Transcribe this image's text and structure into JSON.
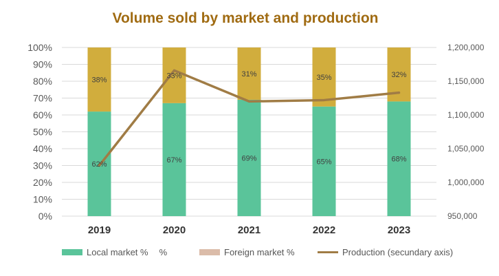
{
  "chart_data": {
    "type": "bar",
    "title": "Volume sold by market and production",
    "categories": [
      "2019",
      "2020",
      "2021",
      "2022",
      "2023"
    ],
    "y_axis": {
      "ticks": [
        "0%",
        "10%",
        "20%",
        "30%",
        "40%",
        "50%",
        "60%",
        "70%",
        "80%",
        "90%",
        "100%"
      ],
      "ylim": [
        0,
        100
      ]
    },
    "y2_axis": {
      "ticks": [
        "950,000",
        "1,000,000",
        "1,050,000",
        "1,100,000",
        "1,150,000",
        "1,200,000"
      ],
      "ylim": [
        950000,
        1200000
      ]
    },
    "series": [
      {
        "name": "Local market %",
        "kind": "stacked-bar",
        "color": "#5ac49a",
        "values": [
          62,
          67,
          69,
          65,
          68
        ],
        "labels": [
          "62%",
          "67%",
          "69%",
          "65%",
          "68%"
        ]
      },
      {
        "name": "Foreign market %",
        "kind": "stacked-bar",
        "color": "#d1ad3d",
        "values": [
          38,
          33,
          31,
          35,
          32
        ],
        "labels": [
          "38%",
          "33%",
          "31%",
          "35%",
          "32%"
        ]
      },
      {
        "name": "Production (secundary axis)",
        "kind": "line",
        "axis": "secondary",
        "color": "#a07c45",
        "values": [
          1025000,
          1166000,
          1120000,
          1122000,
          1133000
        ]
      }
    ],
    "legend": {
      "position": "bottom",
      "items": [
        {
          "label": "Local market %",
          "color": "#5ac49a",
          "extra": "%"
        },
        {
          "label": "Foreign market %",
          "color": "#dbbca9"
        },
        {
          "label": "Production (secundary axis)",
          "color": "#a07c45"
        }
      ]
    },
    "colors": {
      "title": "#a06b12",
      "axis_text": "#595959",
      "gridline": "#d9d9d9",
      "data_label": "#404040"
    },
    "grid": true
  }
}
